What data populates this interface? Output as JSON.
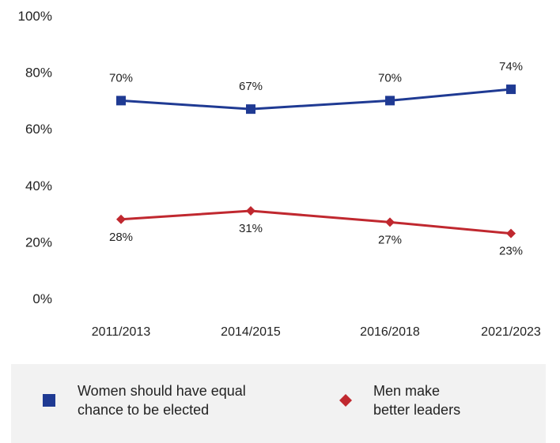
{
  "chart_data": {
    "type": "line",
    "categories": [
      "2011/2013",
      "2014/2015",
      "2016/2018",
      "2021/2023"
    ],
    "ylim": [
      0,
      100
    ],
    "y_ticks": [
      "0%",
      "20%",
      "40%",
      "60%",
      "80%",
      "100%"
    ],
    "y_tick_values": [
      0,
      20,
      40,
      60,
      80,
      100
    ],
    "series": [
      {
        "name": "Women should have equal chance to be elected",
        "values": [
          70,
          67,
          70,
          74
        ],
        "labels": [
          "70%",
          "67%",
          "70%",
          "74%"
        ],
        "color": "#1f3a93",
        "marker": "square"
      },
      {
        "name": "Men make better leaders",
        "values": [
          28,
          31,
          27,
          23
        ],
        "labels": [
          "28%",
          "31%",
          "27%",
          "23%"
        ],
        "color": "#c0282f",
        "marker": "diamond"
      }
    ],
    "grid": false,
    "legend_position": "bottom"
  },
  "legend": {
    "women_label": "Women should have equal\nchance to be elected",
    "men_label": "Men make\nbetter leaders"
  }
}
